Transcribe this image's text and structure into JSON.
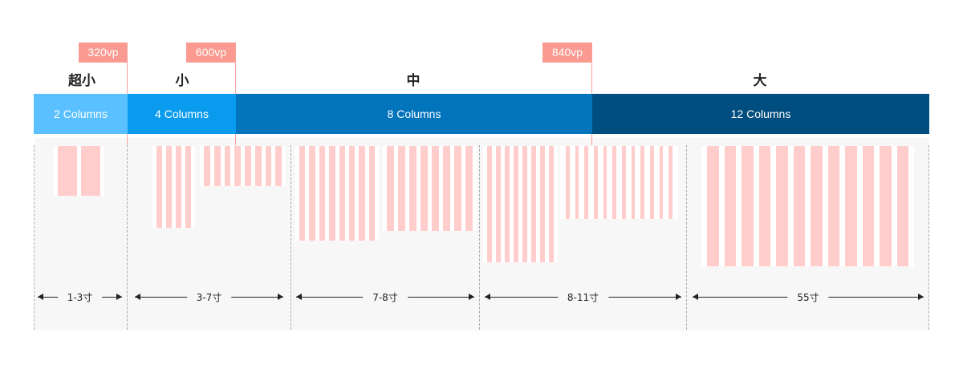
{
  "breakpoints": [
    {
      "label": "320vp"
    },
    {
      "label": "600vp"
    },
    {
      "label": "840vp"
    }
  ],
  "size_classes": [
    "超小",
    "小",
    "中",
    "大"
  ],
  "column_bands": [
    {
      "label": "2 Columns",
      "color": "#5ac0ff"
    },
    {
      "label": "4 Columns",
      "color": "#0a9bef"
    },
    {
      "label": "8 Columns",
      "color": "#0274bb"
    },
    {
      "label": "12 Columns",
      "color": "#004e7f"
    }
  ],
  "device_ranges": [
    "1-3寸",
    "3-7寸",
    "7-8寸",
    "8-11寸",
    "55寸"
  ],
  "colors": {
    "breakpoint_tag": "#fa9a90",
    "column_fill": "#ffcdcb",
    "panel_background": "#f7f7f7"
  }
}
